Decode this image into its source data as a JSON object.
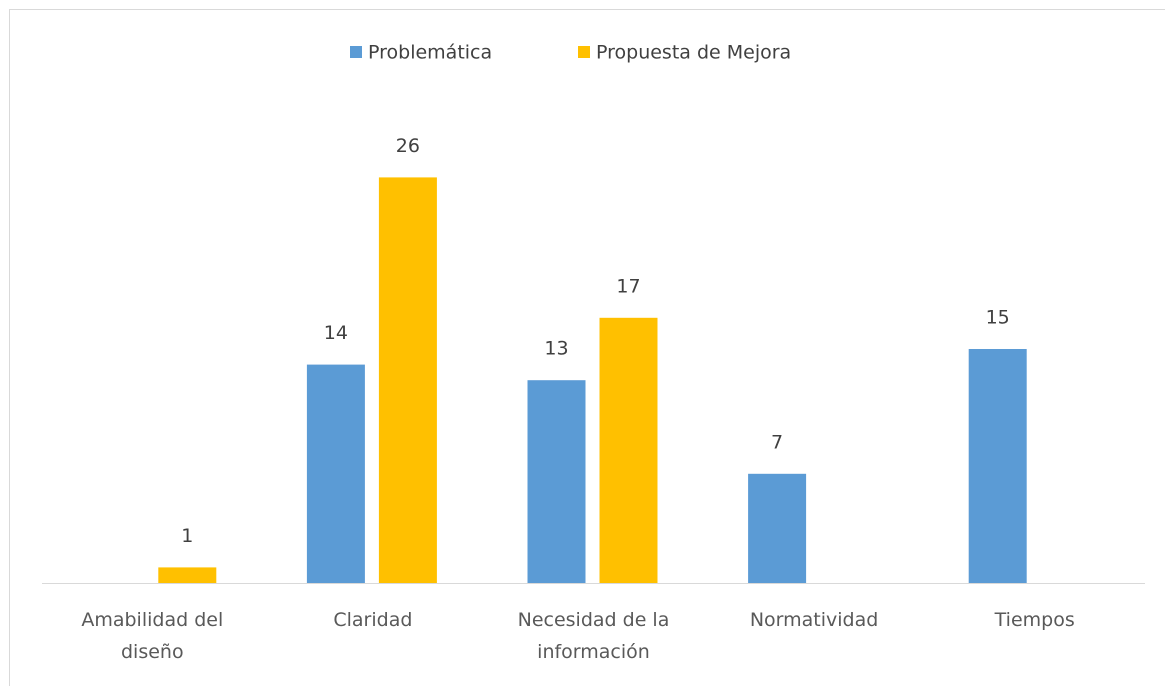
{
  "chart_data": {
    "type": "bar",
    "categories": [
      "Amabilidad del diseño",
      "Claridad",
      "Necesidad de la información",
      "Normatividad",
      "Tiempos"
    ],
    "series": [
      {
        "name": "Problemática",
        "color": "#5b9bd5",
        "values": [
          null,
          14,
          13,
          7,
          15
        ]
      },
      {
        "name": "Propuesta de Mejora",
        "color": "#ffc000",
        "values": [
          1,
          26,
          17,
          null,
          null
        ]
      }
    ],
    "ylim": [
      0,
      30
    ],
    "legend": "top"
  }
}
